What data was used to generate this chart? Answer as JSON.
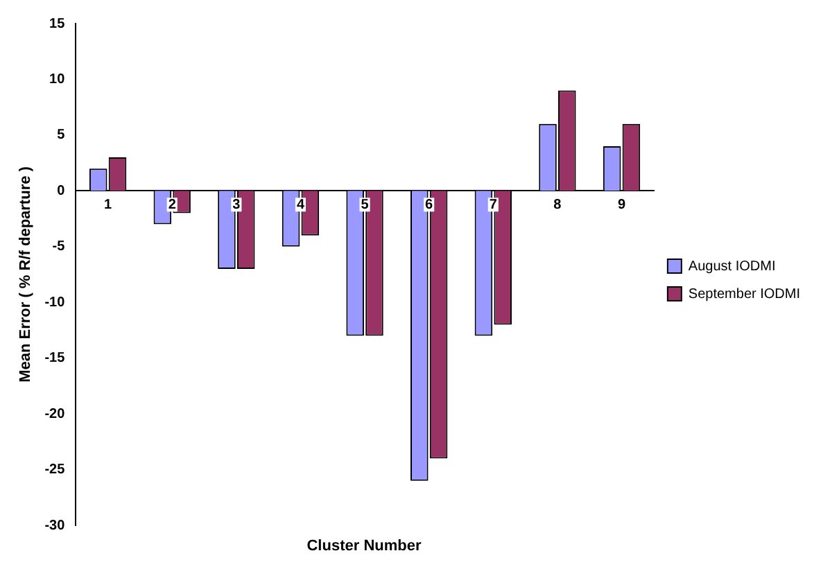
{
  "chart_data": {
    "type": "bar",
    "xlabel": "Cluster Number",
    "ylabel": "Mean Error ( % R/f departure )",
    "categories": [
      "1",
      "2",
      "3",
      "4",
      "5",
      "6",
      "7",
      "8",
      "9"
    ],
    "series": [
      {
        "name": "August IODMI",
        "color": "#9999ff",
        "values": [
          2,
          -3,
          -7,
          -5,
          -13,
          -26,
          -13,
          6,
          4
        ]
      },
      {
        "name": "September IODMI",
        "color": "#993366",
        "values": [
          3,
          -2,
          -7,
          -4,
          -13,
          -24,
          -12,
          9,
          6
        ]
      }
    ],
    "ylim": [
      -30,
      15
    ],
    "yticks": [
      -30,
      -25,
      -20,
      -15,
      -10,
      -5,
      0,
      5,
      10,
      15
    ],
    "grid": false,
    "legend": "right"
  }
}
